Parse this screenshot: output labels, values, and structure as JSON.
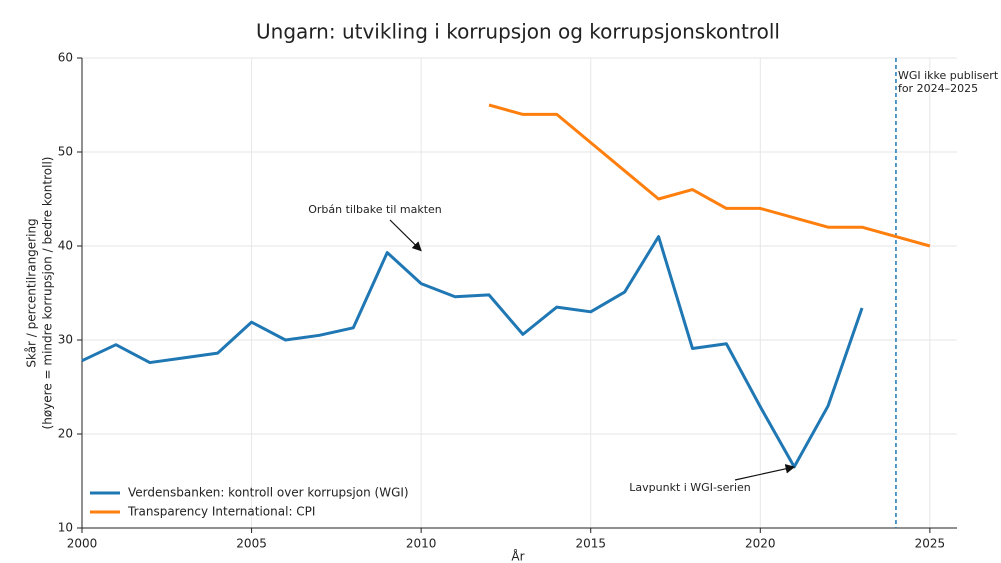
{
  "chart_data": {
    "type": "line",
    "title": "Ungarn: utvikling i korrupsjon og korrupsjonskontroll",
    "xlabel": "År",
    "ylabel": [
      "Skår / percentilrangering",
      "(høyere = mindre korrupsjon / bedre kontroll)"
    ],
    "x": [
      2000,
      2001,
      2002,
      2003,
      2004,
      2005,
      2006,
      2007,
      2008,
      2009,
      2010,
      2011,
      2012,
      2013,
      2014,
      2015,
      2016,
      2017,
      2018,
      2019,
      2020,
      2021,
      2022,
      2023,
      2024,
      2025
    ],
    "series": [
      {
        "name": "Verdensbanken: kontroll over korrupsjon (WGI)",
        "color": "#1f77b4",
        "values": [
          27.8,
          29.5,
          27.6,
          28.1,
          28.6,
          31.9,
          30.0,
          30.5,
          31.3,
          39.3,
          36.0,
          34.6,
          34.8,
          30.6,
          33.5,
          33.0,
          35.1,
          41.0,
          29.1,
          29.6,
          22.9,
          16.5,
          23.0,
          33.4,
          null,
          null
        ]
      },
      {
        "name": "Transparency International: CPI",
        "color": "#ff7f0e",
        "values": [
          null,
          null,
          null,
          null,
          null,
          null,
          null,
          null,
          null,
          null,
          null,
          null,
          55,
          54,
          54,
          51,
          48,
          45,
          46,
          44,
          44,
          43,
          42,
          42,
          41,
          40
        ]
      }
    ],
    "xlim": [
      2000,
      2025.8
    ],
    "xticks": [
      2000,
      2005,
      2010,
      2015,
      2020,
      2025
    ],
    "ylim": [
      10,
      60
    ],
    "yticks": [
      10,
      20,
      30,
      40,
      50,
      60
    ],
    "grid": true,
    "legend": "lower left",
    "vline": {
      "x": 2024,
      "color": "#1f77b4",
      "label": [
        "WGI ikke publisert",
        "for 2024–2025"
      ]
    },
    "annotations": [
      {
        "text": "Orbán tilbake til makten",
        "x": 2010,
        "y": 39.5
      },
      {
        "text": "Lavpunkt i WGI-serien",
        "x": 2021,
        "y": 16.5
      }
    ]
  }
}
